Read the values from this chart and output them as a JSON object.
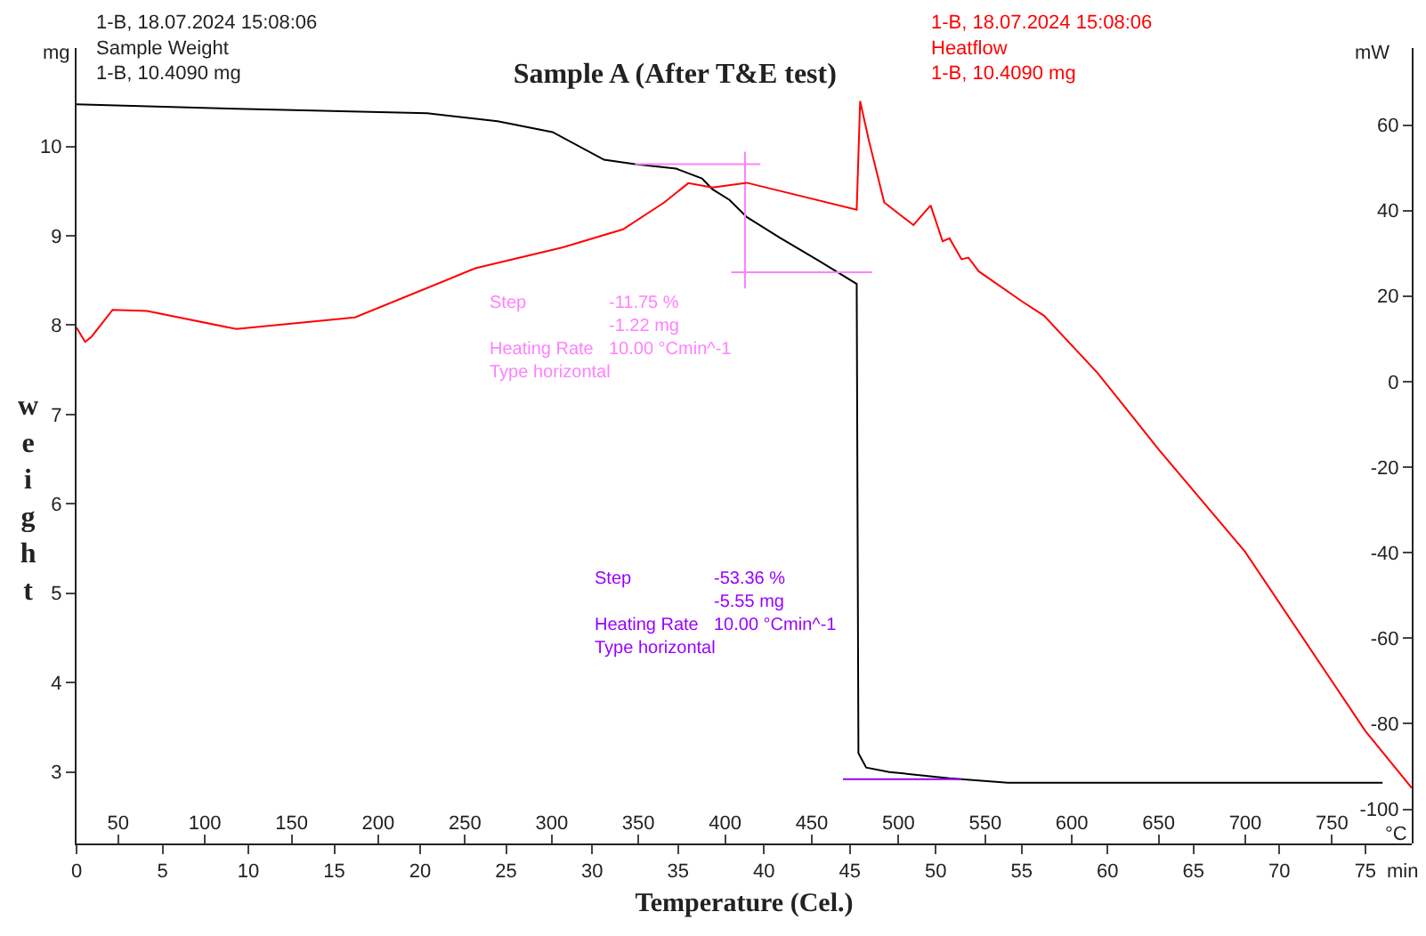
{
  "chart_data": {
    "type": "line",
    "title": "Sample A (After T&E test)",
    "xlabel": "Temperature (Cel.)",
    "ylabel": "weight",
    "y2label": "mW",
    "xlim": [
      0,
      77.7
    ],
    "xticks": [
      0,
      5,
      10,
      15,
      20,
      25,
      30,
      35,
      40,
      45,
      50,
      55,
      60,
      65,
      70,
      75
    ],
    "x2lim": [
      26,
      796
    ],
    "x2ticks": [
      50,
      100,
      150,
      200,
      250,
      300,
      350,
      400,
      450,
      500,
      550,
      600,
      650,
      700,
      750
    ],
    "ylim": [
      2.2,
      11.1
    ],
    "yticks": [
      3,
      4,
      5,
      6,
      7,
      8,
      9,
      10
    ],
    "y2lim": [
      -108,
      78
    ],
    "y2ticks": [
      -100,
      -80,
      -60,
      -40,
      -20,
      0,
      20,
      40,
      60
    ],
    "series": [
      {
        "color": "#000000",
        "x": [
          0,
          9.3,
          20.4,
          24.5,
          27.7,
          30.7,
          32.5,
          34.9,
          36.4,
          37.0,
          38.0,
          39.0,
          40.9,
          43.2,
          45.4,
          45.5,
          45.95,
          47.3,
          50.8,
          54.2,
          76.0
        ],
        "values": [
          10.47,
          10.42,
          10.37,
          10.28,
          10.16,
          9.85,
          9.8,
          9.75,
          9.64,
          9.52,
          9.4,
          9.21,
          8.98,
          8.72,
          8.46,
          3.21,
          3.05,
          3.0,
          2.93,
          2.88,
          2.88
        ]
      },
      {
        "color": "#ff0000",
        "axis": "y2",
        "x": [
          0,
          0.5,
          0.87,
          2.1,
          4.1,
          9.3,
          16.2,
          23.2,
          28.3,
          31.8,
          34.2,
          35.6,
          37.0,
          39.0,
          45.4,
          45.6,
          46.1,
          47.0,
          48.7,
          49.7,
          50.4,
          50.8,
          51.5,
          51.9,
          52.5,
          55.0,
          56.3,
          59.4,
          63.0,
          68.0,
          75.0,
          77.7
        ],
        "values": [
          12.6,
          9.3,
          10.5,
          16.8,
          16.5,
          12.3,
          15.0,
          26.5,
          31.4,
          35.6,
          41.9,
          46.4,
          45.4,
          46.5,
          40.2,
          65.6,
          56.5,
          41.9,
          36.6,
          41.2,
          32.8,
          33.5,
          28.6,
          29.0,
          25.8,
          18.8,
          15.4,
          2.1,
          -16,
          -39.8,
          -81.7,
          -95.0
        ]
      },
      {
        "color": "#ff80ff",
        "x": [
          32.5,
          39.8
        ],
        "values": [
          9.8,
          9.8
        ]
      },
      {
        "color": "#ff80ff",
        "x": [
          38.9,
          38.9
        ],
        "values": [
          9.94,
          8.41
        ]
      },
      {
        "color": "#ff80ff",
        "x": [
          38.1,
          46.3
        ],
        "values": [
          8.59,
          8.59
        ]
      },
      {
        "color": "#9900ff",
        "x": [
          44.6,
          51.5
        ],
        "values": [
          2.92,
          2.92
        ]
      }
    ],
    "annotations": [
      "1-B, 18.07.2024 15:08:06\nSample Weight\n1-B, 10.4090 mg",
      "1-B, 18.07.2024 15:08:06\nHeatflow\n1-B, 10.4090 mg",
      "Step\t-11.75 %\n\t-1.22 mg\nHeating Rate\t10.00 °Cmin^-1\nType horizontal",
      "Step\t-53.36 %\n\t-5.55 mg\nHeating Rate\t10.00 °Cmin^-1\nType horizontal",
      "mg",
      "°C",
      "min"
    ]
  }
}
